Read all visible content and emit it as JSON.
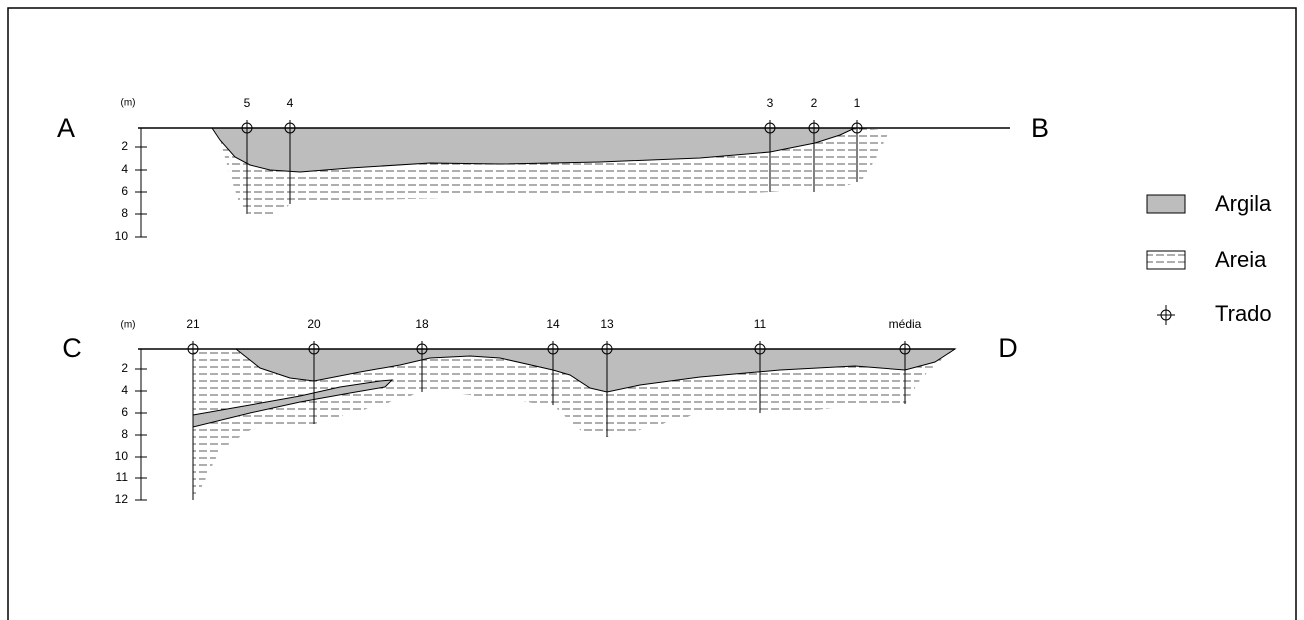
{
  "section_ab": {
    "start": "A",
    "end": "B",
    "unit": "(m)",
    "depths": [
      2,
      4,
      6,
      8,
      10
    ],
    "boreholes": [
      "5",
      "4",
      "3",
      "2",
      "1"
    ]
  },
  "section_cd": {
    "start": "C",
    "end": "D",
    "unit": "(m)",
    "depths": [
      2,
      4,
      6,
      8,
      10,
      11,
      12
    ],
    "boreholes": [
      "21",
      "20",
      "18",
      "14",
      "13",
      "11",
      "média"
    ]
  },
  "legend": [
    {
      "label": "Argila"
    },
    {
      "label": "Areia"
    },
    {
      "label": "Trado"
    }
  ]
}
